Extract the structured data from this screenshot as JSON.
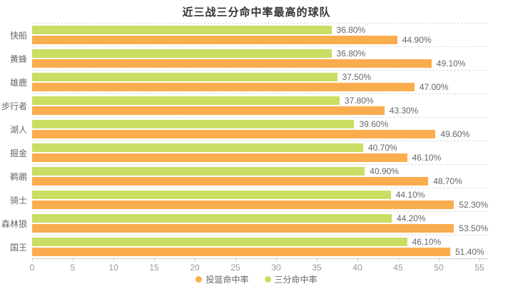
{
  "chart_data": {
    "type": "bar",
    "orientation": "horizontal",
    "title": "近三战三分命中率最高的球队",
    "categories": [
      "快船",
      "黄蜂",
      "雄鹿",
      "步行者",
      "湖人",
      "掘金",
      "鹈鹕",
      "骑士",
      "森林狼",
      "国王"
    ],
    "series": [
      {
        "key": "field-goal-pct",
        "name": "投篮命中率",
        "color": "#FAAD4F",
        "values": [
          44.9,
          49.1,
          47.0,
          43.3,
          49.6,
          46.1,
          48.7,
          52.3,
          53.5,
          51.4
        ]
      },
      {
        "key": "three-point-pct",
        "name": "三分命中率",
        "color": "#C9DE63",
        "values": [
          36.8,
          36.8,
          37.5,
          37.8,
          39.6,
          40.7,
          40.9,
          44.1,
          44.2,
          46.1
        ]
      }
    ],
    "bar_order_top_to_bottom": [
      "three-point-pct",
      "field-goal-pct"
    ],
    "value_label_suffix": "%",
    "value_label_decimals": 2,
    "x_ticks": [
      0,
      5,
      10,
      15,
      20,
      25,
      30,
      35,
      40,
      45,
      50,
      55
    ],
    "xlim": [
      0,
      56.05
    ],
    "grid": "dashed-horizontal-separators",
    "legend_position": "bottom-center",
    "colors": {
      "title_text": "#333333",
      "label_text": "#666666",
      "tick_text": "#999999",
      "axis_line": "#cccccc",
      "separator_line": "#dddddd",
      "background": "#ffffff"
    }
  }
}
